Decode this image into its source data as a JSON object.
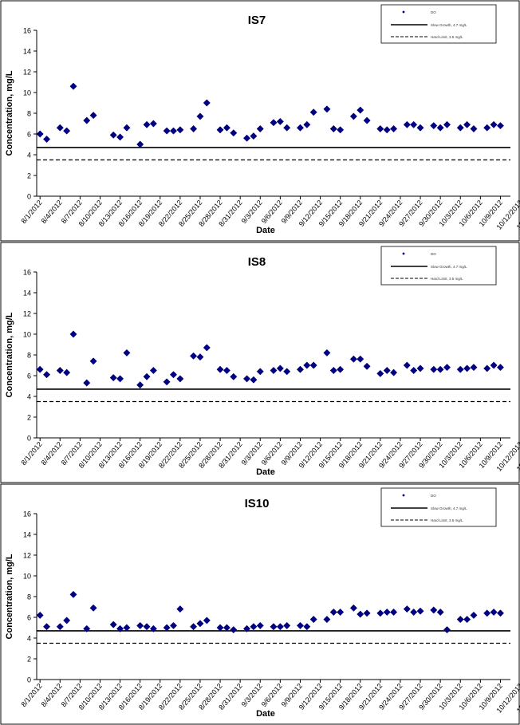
{
  "chart_data": [
    {
      "type": "scatter",
      "title": "IS7",
      "xlabel": "Date",
      "ylabel": "Concentration, mg/L",
      "ylim": [
        0,
        16
      ],
      "yticks": [
        0,
        2,
        4,
        6,
        8,
        10,
        12,
        14,
        16
      ],
      "xticks": [
        "8/1/2012",
        "8/4/2012",
        "8/7/2012",
        "8/10/2012",
        "8/13/2012",
        "8/16/2012",
        "8/19/2012",
        "8/22/2012",
        "8/25/2012",
        "8/28/2012",
        "8/31/2012",
        "9/3/2012",
        "9/6/2012",
        "9/9/2012",
        "9/12/2012",
        "9/15/2012",
        "9/18/2012",
        "9/21/2012",
        "9/24/2012",
        "9/27/2012",
        "9/30/2012",
        "10/3/2012",
        "10/6/2012",
        "10/9/2012",
        "10/12/2012",
        "10/15/2012",
        "10/18/2012",
        "10/21/2012",
        "10/24/2012",
        "10/27/2012",
        "10/30/2012",
        "11/2/2012",
        "11/5/2012",
        "11/8/2012",
        "11/11/2012",
        "11/14/2012",
        "11/17/2012",
        "11/20/2012",
        "11/23/2012",
        "11/26/2012",
        "11/29/2012"
      ],
      "grid": false,
      "legend_position": "top-right",
      "legend": {
        "series": "DO",
        "line1": "Slow Growth, 4.7 mg/L",
        "line2": "Hard Limit, 3.5 mg/L"
      },
      "series": [
        {
          "name": "DO",
          "color": "#000080",
          "marker": "diamond",
          "values": [
            [
              1,
              6.0
            ],
            [
              2,
              5.5
            ],
            [
              4,
              6.6
            ],
            [
              5,
              6.3
            ],
            [
              6,
              10.6
            ],
            [
              8,
              7.3
            ],
            [
              9,
              7.8
            ],
            [
              12,
              5.9
            ],
            [
              13,
              5.7
            ],
            [
              14,
              6.6
            ],
            [
              16,
              5.0
            ],
            [
              17,
              6.9
            ],
            [
              18,
              7.0
            ],
            [
              20,
              6.3
            ],
            [
              21,
              6.3
            ],
            [
              22,
              6.4
            ],
            [
              24,
              6.5
            ],
            [
              25,
              7.7
            ],
            [
              26,
              9.0
            ],
            [
              28,
              6.4
            ],
            [
              29,
              6.6
            ],
            [
              30,
              6.1
            ],
            [
              32,
              5.6
            ],
            [
              33,
              5.8
            ],
            [
              34,
              6.5
            ],
            [
              36,
              7.1
            ],
            [
              37,
              7.2
            ],
            [
              38,
              6.6
            ],
            [
              40,
              6.6
            ],
            [
              41,
              6.9
            ],
            [
              42,
              8.1
            ],
            [
              44,
              8.4
            ],
            [
              45,
              6.5
            ],
            [
              46,
              6.4
            ],
            [
              48,
              7.7
            ],
            [
              49,
              8.3
            ],
            [
              50,
              7.3
            ],
            [
              52,
              6.5
            ],
            [
              53,
              6.4
            ],
            [
              54,
              6.5
            ],
            [
              56,
              6.9
            ],
            [
              57,
              6.9
            ],
            [
              58,
              6.6
            ],
            [
              60,
              6.8
            ],
            [
              61,
              6.6
            ],
            [
              62,
              6.9
            ],
            [
              64,
              6.6
            ],
            [
              65,
              6.9
            ],
            [
              66,
              6.5
            ],
            [
              68,
              6.6
            ],
            [
              69,
              6.9
            ],
            [
              70,
              6.8
            ]
          ]
        },
        {
          "name": "Slow Growth, 4.7 mg/L",
          "type": "hline",
          "value": 4.7,
          "style": "solid"
        },
        {
          "name": "Hard Limit, 3.5 mg/L",
          "type": "hline",
          "value": 3.5,
          "style": "dashed"
        }
      ]
    },
    {
      "type": "scatter",
      "title": "IS8",
      "xlabel": "Date",
      "ylabel": "Concentration, mg/L",
      "ylim": [
        0,
        16
      ],
      "yticks": [
        0,
        2,
        4,
        6,
        8,
        10,
        12,
        14,
        16
      ],
      "xticks": [
        "8/1/2012",
        "8/4/2012",
        "8/7/2012",
        "8/10/2012",
        "8/13/2012",
        "8/16/2012",
        "8/19/2012",
        "8/22/2012",
        "8/25/2012",
        "8/28/2012",
        "8/31/2012",
        "9/3/2012",
        "9/6/2012",
        "9/9/2012",
        "9/12/2012",
        "9/15/2012",
        "9/18/2012",
        "9/21/2012",
        "9/24/2012",
        "9/27/2012",
        "9/30/2012",
        "10/3/2012",
        "10/6/2012",
        "10/9/2012",
        "10/12/2012",
        "10/15/2012",
        "10/18/2012",
        "10/21/2012",
        "10/24/2012",
        "10/27/2012",
        "10/30/2012",
        "11/2/2012",
        "11/5/2012",
        "11/8/2012",
        "11/11/2012",
        "11/14/2012",
        "11/17/2012",
        "11/20/2012",
        "11/23/2012",
        "11/26/2012",
        "11/29/2012"
      ],
      "grid": false,
      "legend_position": "top-right",
      "legend": {
        "series": "DO",
        "line1": "Slow Growth, 4.7 mg/L",
        "line2": "Hard Limit, 3.5 mg/L"
      },
      "series": [
        {
          "name": "DO",
          "color": "#000080",
          "marker": "diamond",
          "values": [
            [
              1,
              6.6
            ],
            [
              2,
              6.1
            ],
            [
              4,
              6.5
            ],
            [
              5,
              6.3
            ],
            [
              6,
              10.0
            ],
            [
              8,
              5.3
            ],
            [
              9,
              7.4
            ],
            [
              12,
              5.8
            ],
            [
              13,
              5.7
            ],
            [
              14,
              8.2
            ],
            [
              16,
              5.1
            ],
            [
              17,
              5.9
            ],
            [
              18,
              6.5
            ],
            [
              20,
              5.4
            ],
            [
              21,
              6.1
            ],
            [
              22,
              5.7
            ],
            [
              24,
              7.9
            ],
            [
              25,
              7.8
            ],
            [
              26,
              8.7
            ],
            [
              28,
              6.6
            ],
            [
              29,
              6.5
            ],
            [
              30,
              5.9
            ],
            [
              32,
              5.7
            ],
            [
              33,
              5.6
            ],
            [
              34,
              6.4
            ],
            [
              36,
              6.5
            ],
            [
              37,
              6.7
            ],
            [
              38,
              6.4
            ],
            [
              40,
              6.6
            ],
            [
              41,
              7.0
            ],
            [
              42,
              7.0
            ],
            [
              44,
              8.2
            ],
            [
              45,
              6.5
            ],
            [
              46,
              6.6
            ],
            [
              48,
              7.6
            ],
            [
              49,
              7.6
            ],
            [
              50,
              6.9
            ],
            [
              52,
              6.2
            ],
            [
              53,
              6.5
            ],
            [
              54,
              6.3
            ],
            [
              56,
              7.0
            ],
            [
              57,
              6.5
            ],
            [
              58,
              6.7
            ],
            [
              60,
              6.6
            ],
            [
              61,
              6.6
            ],
            [
              62,
              6.8
            ],
            [
              64,
              6.6
            ],
            [
              65,
              6.7
            ],
            [
              66,
              6.8
            ],
            [
              68,
              6.7
            ],
            [
              69,
              7.0
            ],
            [
              70,
              6.8
            ]
          ]
        },
        {
          "name": "Slow Growth, 4.7 mg/L",
          "type": "hline",
          "value": 4.7,
          "style": "solid"
        },
        {
          "name": "Hard Limit, 3.5 mg/L",
          "type": "hline",
          "value": 3.5,
          "style": "dashed"
        }
      ]
    },
    {
      "type": "scatter",
      "title": "IS10",
      "xlabel": "Date",
      "ylabel": "Concentration, mg/L",
      "ylim": [
        0,
        16
      ],
      "yticks": [
        0,
        2,
        4,
        6,
        8,
        10,
        12,
        14,
        16
      ],
      "xticks": [
        "8/1/2012",
        "8/4/2012",
        "8/7/2012",
        "8/10/2012",
        "8/13/2012",
        "8/16/2012",
        "8/19/2012",
        "8/22/2012",
        "8/25/2012",
        "8/28/2012",
        "8/31/2012",
        "9/3/2012",
        "9/6/2012",
        "9/9/2012",
        "9/12/2012",
        "9/15/2012",
        "9/18/2012",
        "9/21/2012",
        "9/24/2012",
        "9/27/2012",
        "9/30/2012",
        "10/3/2012",
        "10/6/2012",
        "10/9/2012",
        "10/12/2012",
        "10/15/2012",
        "10/18/2012",
        "10/21/2012",
        "10/24/2012",
        "10/27/2012",
        "10/30/2012",
        "11/2/2012",
        "11/5/2012",
        "11/8/2012",
        "11/11/2012",
        "11/14/2012",
        "11/17/2012",
        "11/20/2012",
        "11/23/2012",
        "11/26/2012",
        "11/29/2012"
      ],
      "grid": false,
      "legend_position": "top-right",
      "legend": {
        "series": "DO",
        "line1": "Slow Growth, 4.7 mg/L",
        "line2": "Hard Limit, 3.5 mg/L"
      },
      "series": [
        {
          "name": "DO",
          "color": "#000080",
          "marker": "diamond",
          "values": [
            [
              1,
              6.2
            ],
            [
              2,
              5.1
            ],
            [
              4,
              5.1
            ],
            [
              5,
              5.7
            ],
            [
              6,
              8.2
            ],
            [
              8,
              4.9
            ],
            [
              9,
              6.9
            ],
            [
              12,
              5.3
            ],
            [
              13,
              4.9
            ],
            [
              14,
              5.0
            ],
            [
              16,
              5.2
            ],
            [
              17,
              5.1
            ],
            [
              18,
              4.9
            ],
            [
              20,
              5.0
            ],
            [
              21,
              5.2
            ],
            [
              22,
              6.8
            ],
            [
              24,
              5.1
            ],
            [
              25,
              5.4
            ],
            [
              26,
              5.7
            ],
            [
              28,
              5.0
            ],
            [
              29,
              5.0
            ],
            [
              30,
              4.8
            ],
            [
              32,
              4.9
            ],
            [
              33,
              5.1
            ],
            [
              34,
              5.2
            ],
            [
              36,
              5.1
            ],
            [
              37,
              5.1
            ],
            [
              38,
              5.2
            ],
            [
              40,
              5.2
            ],
            [
              41,
              5.1
            ],
            [
              42,
              5.8
            ],
            [
              44,
              5.8
            ],
            [
              45,
              6.5
            ],
            [
              46,
              6.5
            ],
            [
              48,
              6.9
            ],
            [
              49,
              6.3
            ],
            [
              50,
              6.4
            ],
            [
              52,
              6.4
            ],
            [
              53,
              6.5
            ],
            [
              54,
              6.5
            ],
            [
              56,
              6.8
            ],
            [
              57,
              6.5
            ],
            [
              58,
              6.6
            ],
            [
              60,
              6.7
            ],
            [
              61,
              6.5
            ],
            [
              62,
              4.8
            ],
            [
              64,
              5.8
            ],
            [
              65,
              5.8
            ],
            [
              66,
              6.2
            ],
            [
              68,
              6.4
            ],
            [
              69,
              6.5
            ],
            [
              70,
              6.4
            ]
          ]
        },
        {
          "name": "Slow Growth, 4.7 mg/L",
          "type": "hline",
          "value": 4.7,
          "style": "solid"
        },
        {
          "name": "Hard Limit, 3.5 mg/L",
          "type": "hline",
          "value": 3.5,
          "style": "dashed"
        }
      ]
    }
  ]
}
